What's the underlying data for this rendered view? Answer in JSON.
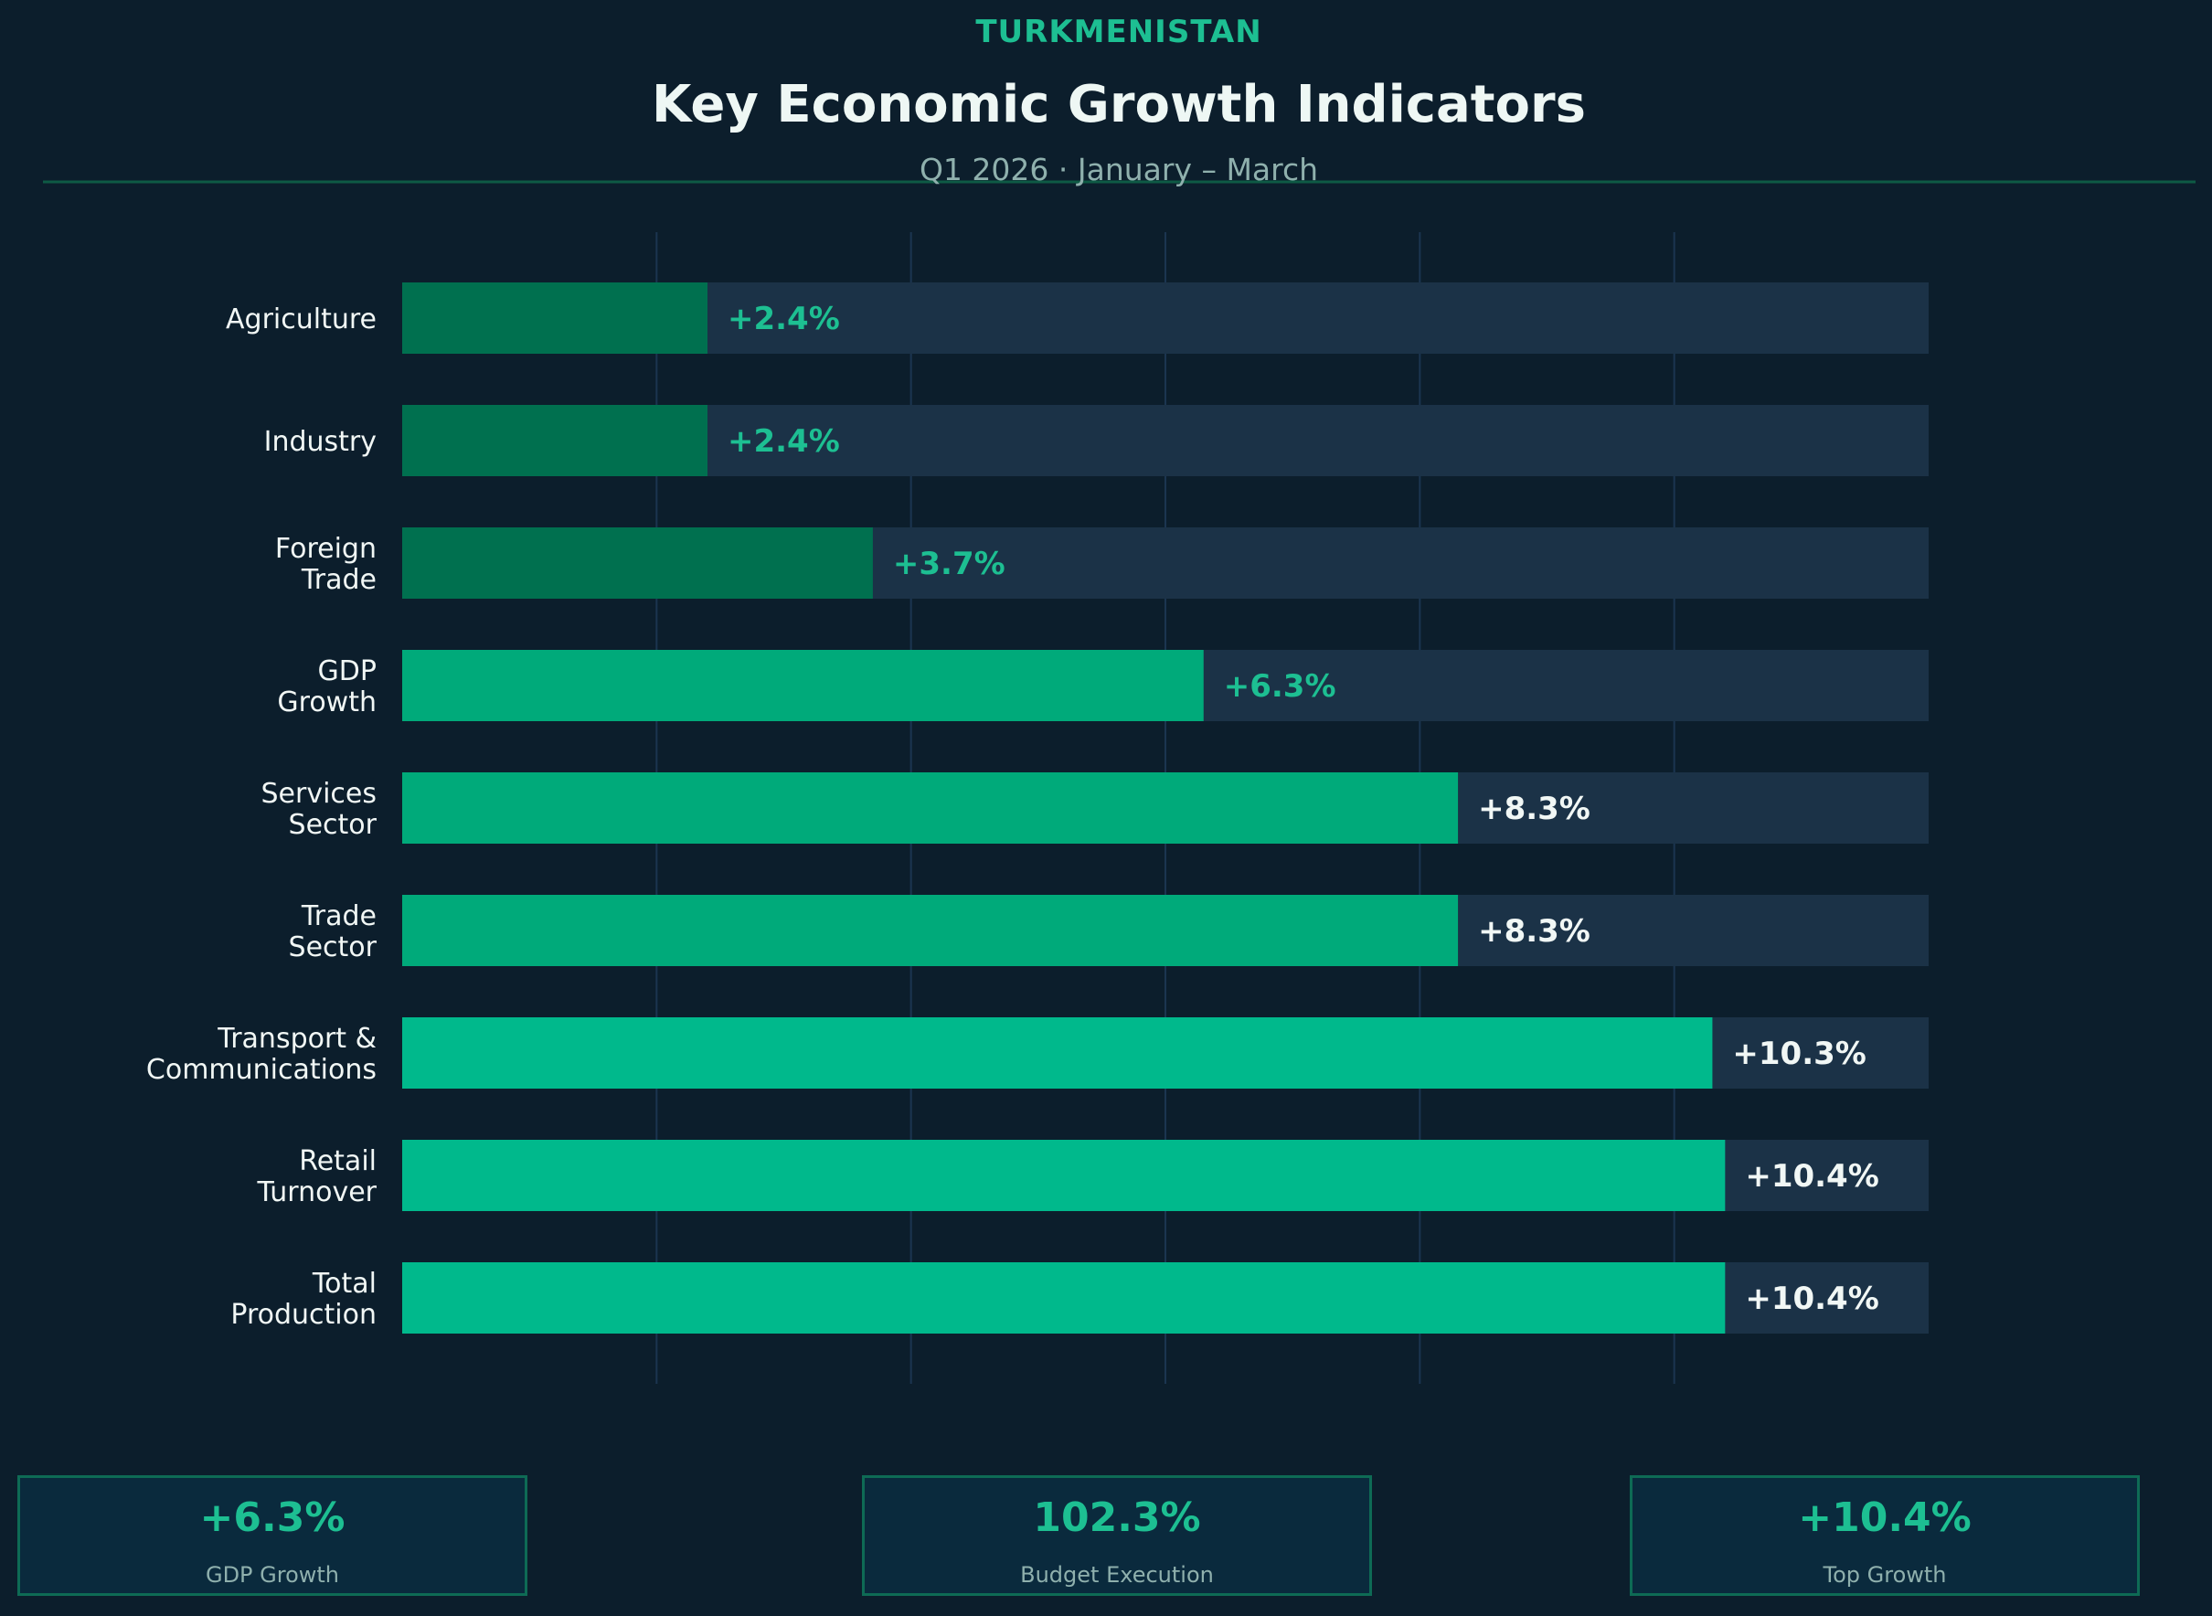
{
  "chart_data": {
    "type": "bar",
    "orientation": "horizontal",
    "supertitle": "TURKMENISTAN",
    "title": "Key Economic Growth Indicators",
    "subtitle": "Q1 2026 · January – March",
    "categories": [
      [
        "Agriculture"
      ],
      [
        "Industry"
      ],
      [
        "Foreign",
        "Trade"
      ],
      [
        "GDP",
        "Growth"
      ],
      [
        "Services",
        "Sector"
      ],
      [
        "Trade",
        "Sector"
      ],
      [
        "Transport &",
        "Communications"
      ],
      [
        "Retail",
        "Turnover"
      ],
      [
        "Total",
        "Production"
      ]
    ],
    "values": [
      2.4,
      2.4,
      3.7,
      6.3,
      8.3,
      8.3,
      10.3,
      10.4,
      10.4
    ],
    "value_labels": [
      "+2.4%",
      "+2.4%",
      "+3.7%",
      "+6.3%",
      "+8.3%",
      "+8.3%",
      "+10.3%",
      "+10.4%",
      "+10.4%"
    ],
    "xlim": [
      0,
      12
    ],
    "grid": true,
    "colors": {
      "background": "#0c1e2c",
      "track": "#1b3247",
      "low": "#00704f",
      "mid": "#00aa7a",
      "high": "#00b98c",
      "accent": "#1dbf92",
      "label_light": "#f1f7f5",
      "title": "#eef7f4",
      "subtitle": "#8fb0ad",
      "rule": "#0e5a45",
      "grid": "#1b3550"
    }
  },
  "stats": [
    {
      "value": "+6.3%",
      "label": "GDP Growth"
    },
    {
      "value": "102.3%",
      "label": "Budget Execution"
    },
    {
      "value": "+10.4%",
      "label": "Top Growth"
    }
  ]
}
